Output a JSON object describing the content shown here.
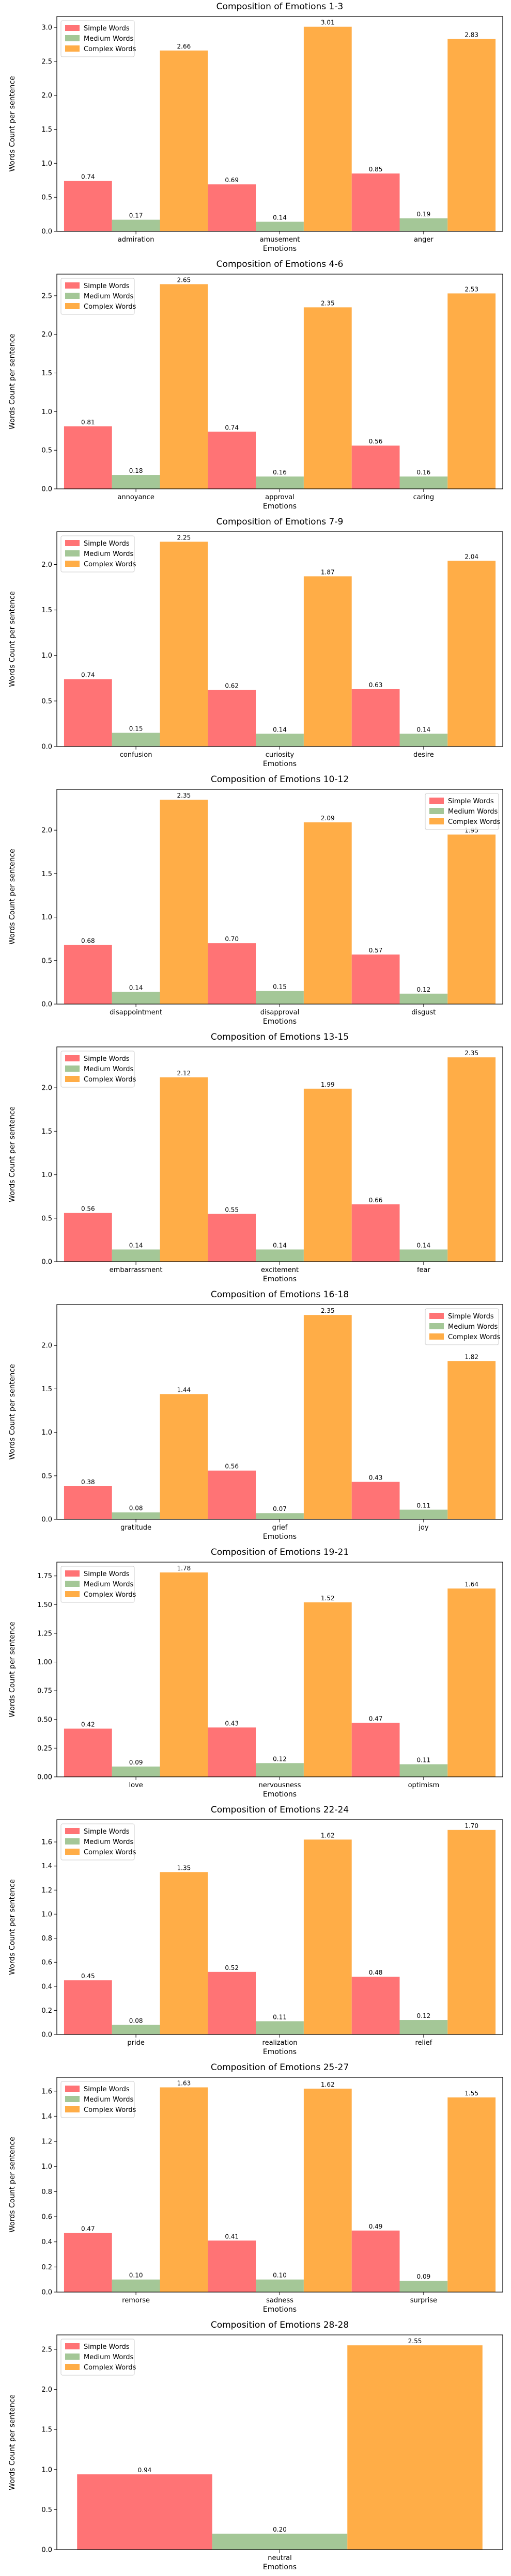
{
  "chart_data": [
    {
      "type": "bar",
      "title": "Composition of Emotions 1-3",
      "xlabel": "Emotions",
      "ylabel": "Words Count per sentence",
      "categories": [
        "admiration",
        "amusement",
        "anger"
      ],
      "series": [
        {
          "name": "Simple Words",
          "color": "#ff7375",
          "values": [
            0.74,
            0.69,
            0.85
          ]
        },
        {
          "name": "Medium Words",
          "color": "#a4c797",
          "values": [
            0.17,
            0.14,
            0.19
          ]
        },
        {
          "name": "Complex Words",
          "color": "#ffad47",
          "values": [
            2.66,
            3.01,
            2.83
          ]
        }
      ],
      "ylim": [
        0,
        3.16
      ],
      "yticks": [
        0.0,
        0.5,
        1.0,
        1.5,
        2.0,
        2.5,
        3.0
      ],
      "legend_position": "upper left"
    },
    {
      "type": "bar",
      "title": "Composition of Emotions 4-6",
      "xlabel": "Emotions",
      "ylabel": "Words Count per sentence",
      "categories": [
        "annoyance",
        "approval",
        "caring"
      ],
      "series": [
        {
          "name": "Simple Words",
          "color": "#ff7375",
          "values": [
            0.81,
            0.74,
            0.56
          ]
        },
        {
          "name": "Medium Words",
          "color": "#a4c797",
          "values": [
            0.18,
            0.16,
            0.16
          ]
        },
        {
          "name": "Complex Words",
          "color": "#ffad47",
          "values": [
            2.65,
            2.35,
            2.53
          ]
        }
      ],
      "ylim": [
        0,
        2.78
      ],
      "yticks": [
        0.0,
        0.5,
        1.0,
        1.5,
        2.0,
        2.5
      ],
      "legend_position": "upper left"
    },
    {
      "type": "bar",
      "title": "Composition of Emotions 7-9",
      "xlabel": "Emotions",
      "ylabel": "Words Count per sentence",
      "categories": [
        "confusion",
        "curiosity",
        "desire"
      ],
      "series": [
        {
          "name": "Simple Words",
          "color": "#ff7375",
          "values": [
            0.74,
            0.62,
            0.63
          ]
        },
        {
          "name": "Medium Words",
          "color": "#a4c797",
          "values": [
            0.15,
            0.14,
            0.14
          ]
        },
        {
          "name": "Complex Words",
          "color": "#ffad47",
          "values": [
            2.25,
            1.87,
            2.04
          ]
        }
      ],
      "ylim": [
        0,
        2.36
      ],
      "yticks": [
        0.0,
        0.5,
        1.0,
        1.5,
        2.0
      ],
      "legend_position": "upper left"
    },
    {
      "type": "bar",
      "title": "Composition of Emotions 10-12",
      "xlabel": "Emotions",
      "ylabel": "Words Count per sentence",
      "categories": [
        "disappointment",
        "disapproval",
        "disgust"
      ],
      "series": [
        {
          "name": "Simple Words",
          "color": "#ff7375",
          "values": [
            0.68,
            0.7,
            0.57
          ]
        },
        {
          "name": "Medium Words",
          "color": "#a4c797",
          "values": [
            0.14,
            0.15,
            0.12
          ]
        },
        {
          "name": "Complex Words",
          "color": "#ffad47",
          "values": [
            2.35,
            2.09,
            1.95
          ]
        }
      ],
      "ylim": [
        0,
        2.47
      ],
      "yticks": [
        0.0,
        0.5,
        1.0,
        1.5,
        2.0
      ],
      "legend_position": "upper right"
    },
    {
      "type": "bar",
      "title": "Composition of Emotions 13-15",
      "xlabel": "Emotions",
      "ylabel": "Words Count per sentence",
      "categories": [
        "embarrassment",
        "excitement",
        "fear"
      ],
      "series": [
        {
          "name": "Simple Words",
          "color": "#ff7375",
          "values": [
            0.56,
            0.55,
            0.66
          ]
        },
        {
          "name": "Medium Words",
          "color": "#a4c797",
          "values": [
            0.14,
            0.14,
            0.14
          ]
        },
        {
          "name": "Complex Words",
          "color": "#ffad47",
          "values": [
            2.12,
            1.99,
            2.35
          ]
        }
      ],
      "ylim": [
        0,
        2.47
      ],
      "yticks": [
        0.0,
        0.5,
        1.0,
        1.5,
        2.0
      ],
      "legend_position": "upper left"
    },
    {
      "type": "bar",
      "title": "Composition of Emotions 16-18",
      "xlabel": "Emotions",
      "ylabel": "Words Count per sentence",
      "categories": [
        "gratitude",
        "grief",
        "joy"
      ],
      "series": [
        {
          "name": "Simple Words",
          "color": "#ff7375",
          "values": [
            0.38,
            0.56,
            0.43
          ]
        },
        {
          "name": "Medium Words",
          "color": "#a4c797",
          "values": [
            0.08,
            0.07,
            0.11
          ]
        },
        {
          "name": "Complex Words",
          "color": "#ffad47",
          "values": [
            1.44,
            2.35,
            1.82
          ]
        }
      ],
      "ylim": [
        0,
        2.47
      ],
      "yticks": [
        0.0,
        0.5,
        1.0,
        1.5,
        2.0
      ],
      "legend_position": "upper right"
    },
    {
      "type": "bar",
      "title": "Composition of Emotions 19-21",
      "xlabel": "Emotions",
      "ylabel": "Words Count per sentence",
      "categories": [
        "love",
        "nervousness",
        "optimism"
      ],
      "series": [
        {
          "name": "Simple Words",
          "color": "#ff7375",
          "values": [
            0.42,
            0.43,
            0.47
          ]
        },
        {
          "name": "Medium Words",
          "color": "#a4c797",
          "values": [
            0.09,
            0.12,
            0.11
          ]
        },
        {
          "name": "Complex Words",
          "color": "#ffad47",
          "values": [
            1.78,
            1.52,
            1.64
          ]
        }
      ],
      "ylim": [
        0,
        1.87
      ],
      "yticks": [
        0.0,
        0.25,
        0.5,
        0.75,
        1.0,
        1.25,
        1.5,
        1.75
      ],
      "ytick_labels": [
        "0.00",
        "0.25",
        "0.50",
        "0.75",
        "1.00",
        "1.25",
        "1.50",
        "1.75"
      ],
      "legend_position": "upper left"
    },
    {
      "type": "bar",
      "title": "Composition of Emotions 22-24",
      "xlabel": "Emotions",
      "ylabel": "Words Count per sentence",
      "categories": [
        "pride",
        "realization",
        "relief"
      ],
      "series": [
        {
          "name": "Simple Words",
          "color": "#ff7375",
          "values": [
            0.45,
            0.52,
            0.48
          ]
        },
        {
          "name": "Medium Words",
          "color": "#a4c797",
          "values": [
            0.08,
            0.11,
            0.12
          ]
        },
        {
          "name": "Complex Words",
          "color": "#ffad47",
          "values": [
            1.35,
            1.62,
            1.7
          ]
        }
      ],
      "ylim": [
        0,
        1.785
      ],
      "yticks": [
        0.0,
        0.2,
        0.4,
        0.6,
        0.8,
        1.0,
        1.2,
        1.4,
        1.6
      ],
      "legend_position": "upper left"
    },
    {
      "type": "bar",
      "title": "Composition of Emotions 25-27",
      "xlabel": "Emotions",
      "ylabel": "Words Count per sentence",
      "categories": [
        "remorse",
        "sadness",
        "surprise"
      ],
      "series": [
        {
          "name": "Simple Words",
          "color": "#ff7375",
          "values": [
            0.47,
            0.41,
            0.49
          ]
        },
        {
          "name": "Medium Words",
          "color": "#a4c797",
          "values": [
            0.1,
            0.1,
            0.09
          ]
        },
        {
          "name": "Complex Words",
          "color": "#ffad47",
          "values": [
            1.63,
            1.62,
            1.55
          ]
        }
      ],
      "ylim": [
        0,
        1.71
      ],
      "yticks": [
        0.0,
        0.2,
        0.4,
        0.6,
        0.8,
        1.0,
        1.2,
        1.4,
        1.6
      ],
      "legend_position": "upper left"
    },
    {
      "type": "bar",
      "title": "Composition of Emotions 28-28",
      "xlabel": "Emotions",
      "ylabel": "Words Count per sentence",
      "categories": [
        "neutral"
      ],
      "series": [
        {
          "name": "Simple Words",
          "color": "#ff7375",
          "values": [
            0.94
          ]
        },
        {
          "name": "Medium Words",
          "color": "#a4c797",
          "values": [
            0.2
          ]
        },
        {
          "name": "Complex Words",
          "color": "#ffad47",
          "values": [
            2.55
          ]
        }
      ],
      "ylim": [
        0,
        2.68
      ],
      "yticks": [
        0.0,
        0.5,
        1.0,
        1.5,
        2.0,
        2.5
      ],
      "legend_position": "upper left"
    }
  ]
}
